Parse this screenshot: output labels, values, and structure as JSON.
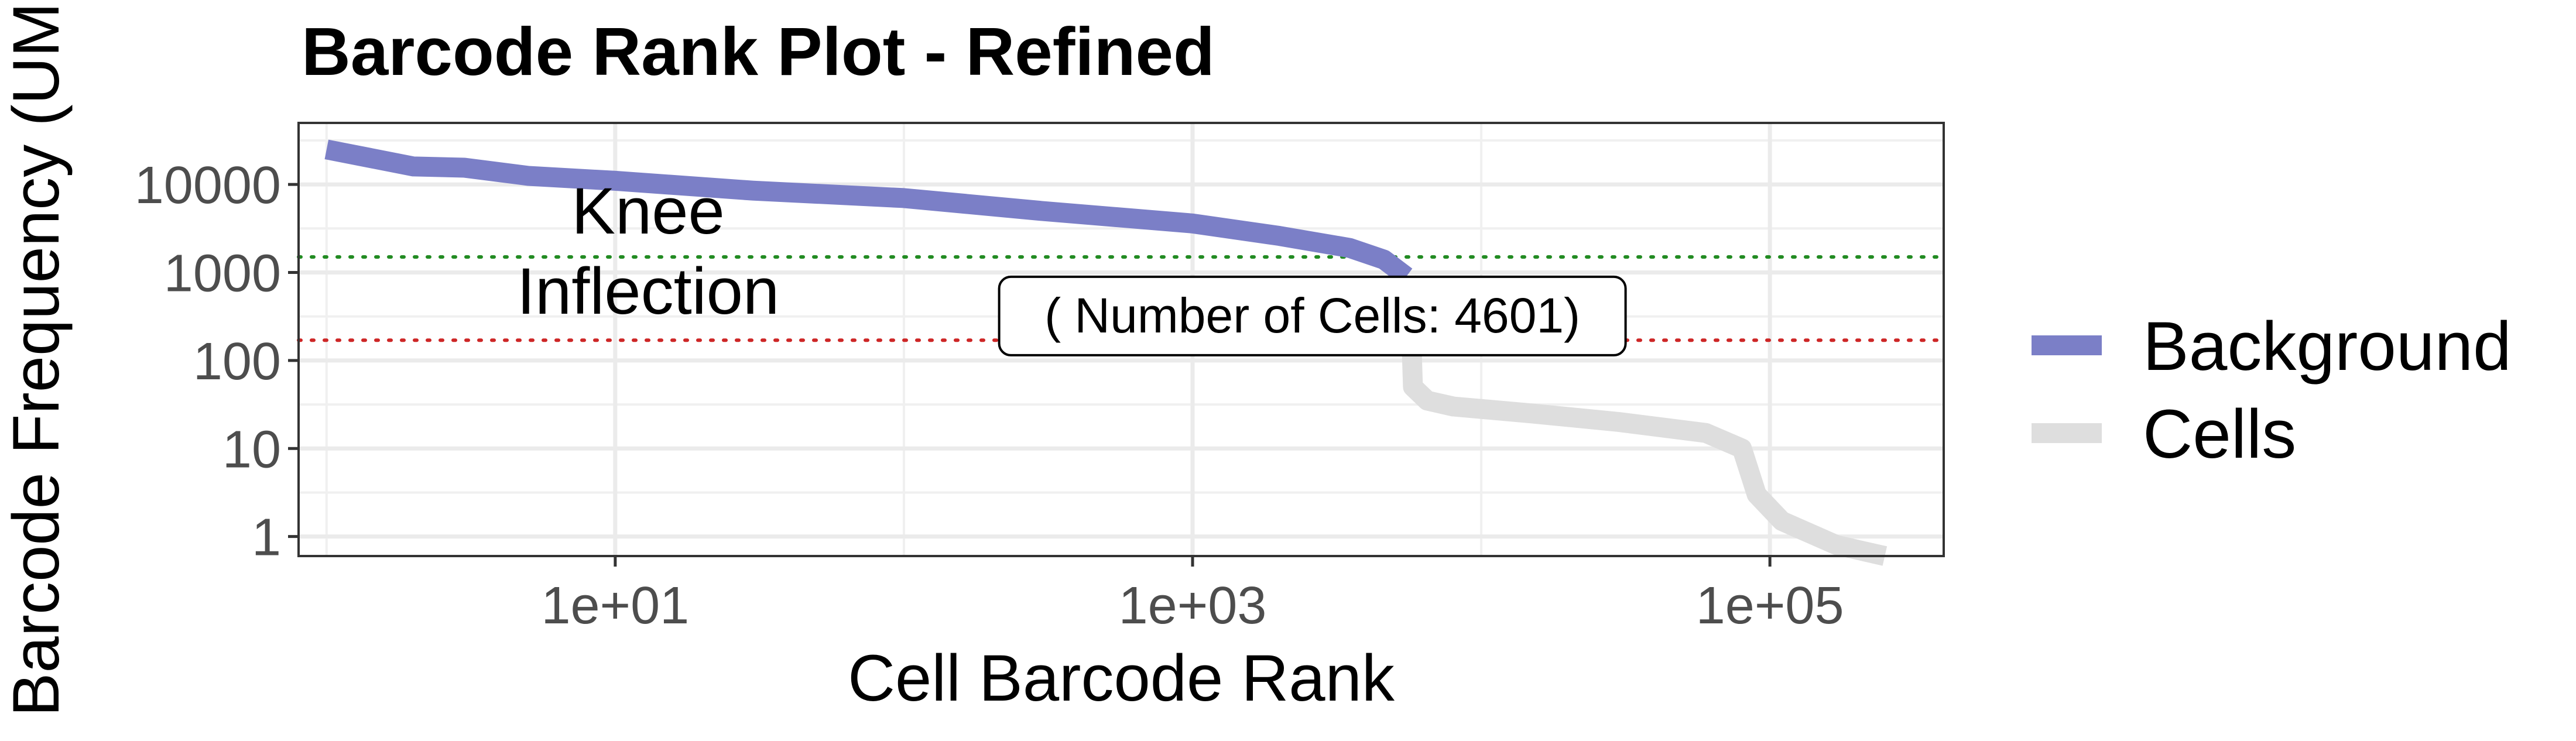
{
  "chart_data": {
    "type": "line",
    "title": "Barcode Rank Plot - Refined",
    "xlabel": "Cell Barcode Rank",
    "ylabel": "Barcode Frequency (UMI)",
    "x_scale": "log10",
    "y_scale": "log10",
    "xlim": [
      0.8,
      400000
    ],
    "ylim": [
      0.6,
      50000
    ],
    "x_ticks": [
      10,
      1000,
      100000
    ],
    "x_tick_labels": [
      "1e+01",
      "1e+03",
      "1e+05"
    ],
    "y_ticks": [
      1,
      10,
      100,
      1000,
      10000
    ],
    "y_tick_labels": [
      "1",
      "10",
      "100",
      "1000",
      "10000"
    ],
    "grid": true,
    "legend_position": "right",
    "series": [
      {
        "name": "Background",
        "color": "#7b7fc7",
        "points": [
          [
            1,
            25000
          ],
          [
            2,
            16000
          ],
          [
            3,
            15500
          ],
          [
            5,
            12500
          ],
          [
            10,
            11000
          ],
          [
            30,
            8500
          ],
          [
            100,
            7000
          ],
          [
            300,
            5000
          ],
          [
            1000,
            3600
          ],
          [
            2000,
            2600
          ],
          [
            3500,
            1900
          ],
          [
            4601,
            1400
          ],
          [
            5500,
            900
          ]
        ]
      },
      {
        "name": "Cells",
        "color": "#dedede",
        "points": [
          [
            5500,
            900
          ],
          [
            5700,
            300
          ],
          [
            5800,
            50
          ],
          [
            6500,
            35
          ],
          [
            8000,
            30
          ],
          [
            15000,
            25
          ],
          [
            30000,
            20
          ],
          [
            60000,
            15
          ],
          [
            80000,
            10
          ],
          [
            90000,
            3
          ],
          [
            110000,
            1.5
          ],
          [
            170000,
            0.8
          ],
          [
            250000,
            0.6
          ]
        ]
      }
    ],
    "annotations": [
      {
        "label": "Knee",
        "y": 1500,
        "color": "#228b22",
        "line_style": "dotted"
      },
      {
        "label": "Inflection",
        "y": 170,
        "color": "#cd2626",
        "line_style": "dotted"
      }
    ],
    "cells_label": "( Number of Cells: 4601)"
  }
}
